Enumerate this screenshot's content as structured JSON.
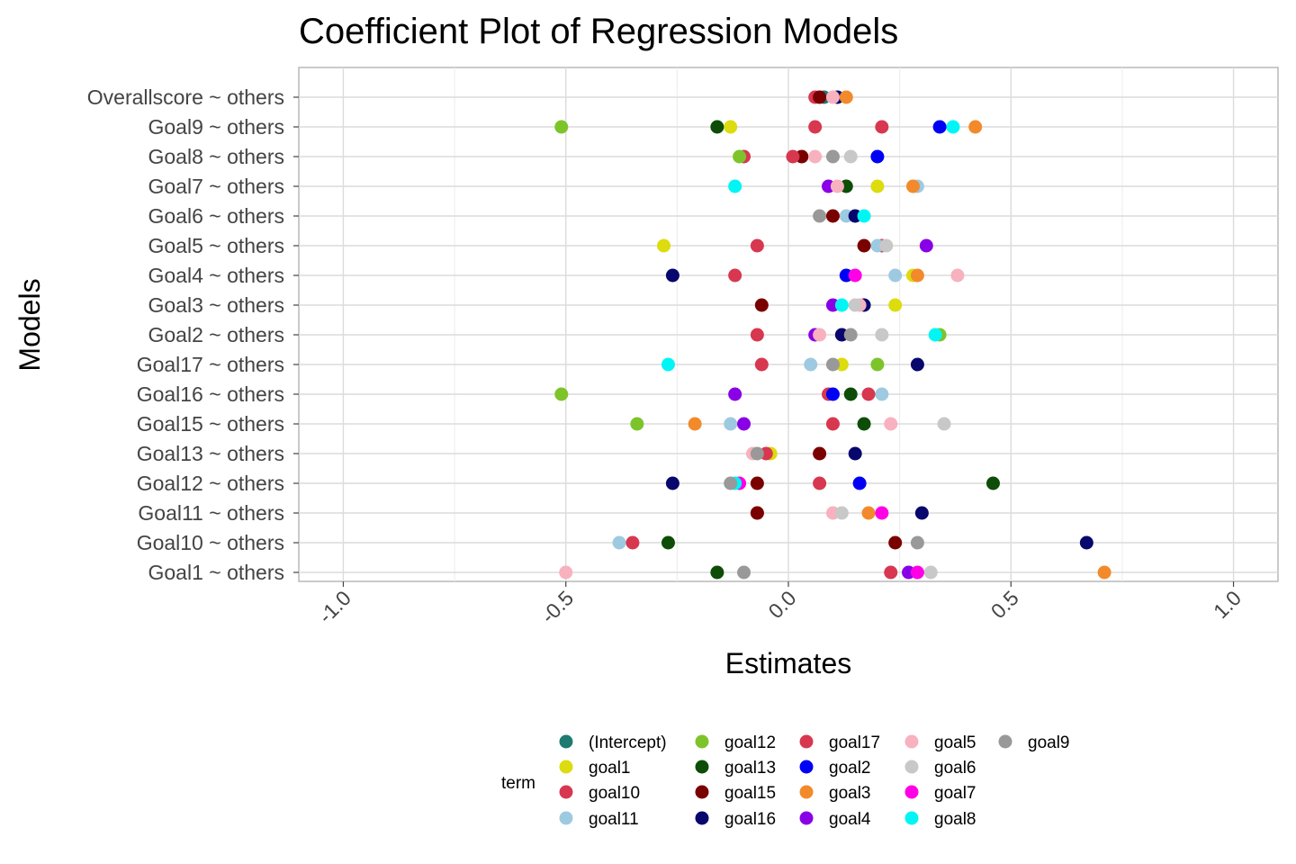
{
  "chart_data": {
    "type": "scatter",
    "title": "Coefficient Plot of Regression Models",
    "xlabel": "Estimates",
    "ylabel": "Models",
    "xlim": [
      -1.1,
      1.1
    ],
    "x_ticks": [
      -1.0,
      -0.5,
      0.0,
      0.5,
      1.0
    ],
    "x_tick_labels": [
      "-1.0",
      "-0.5",
      "0.0",
      "0.5",
      "1.0"
    ],
    "grid": true,
    "legend_title": "term",
    "legend_position": "bottom",
    "categories": [
      "Overallscore ~ others",
      "Goal9 ~ others",
      "Goal8 ~ others",
      "Goal7 ~ others",
      "Goal6 ~ others",
      "Goal5 ~ others",
      "Goal4 ~ others",
      "Goal3 ~ others",
      "Goal2 ~ others",
      "Goal17 ~ others",
      "Goal16 ~ others",
      "Goal15 ~ others",
      "Goal13 ~ others",
      "Goal12 ~ others",
      "Goal11 ~ others",
      "Goal10 ~ others",
      "Goal1 ~ others"
    ],
    "series": [
      {
        "name": "(Intercept)",
        "color": "#1f7a72",
        "points": [
          [
            "Overallscore ~ others",
            0.08
          ]
        ]
      },
      {
        "name": "goal1",
        "color": "#dcdc0e",
        "points": [
          [
            "Goal9 ~ others",
            -0.13
          ],
          [
            "Goal7 ~ others",
            0.2
          ],
          [
            "Goal5 ~ others",
            -0.28
          ],
          [
            "Goal4 ~ others",
            0.28
          ],
          [
            "Goal3 ~ others",
            0.24
          ],
          [
            "Goal17 ~ others",
            0.12
          ],
          [
            "Goal13 ~ others",
            -0.04
          ]
        ]
      },
      {
        "name": "goal10",
        "color": "#d7384f",
        "points": [
          [
            "Overallscore ~ others",
            0.06
          ],
          [
            "Goal9 ~ others",
            0.06
          ],
          [
            "Goal8 ~ others",
            -0.1
          ],
          [
            "Goal5 ~ others",
            0.21
          ],
          [
            "Goal4 ~ others",
            -0.12
          ],
          [
            "Goal2 ~ others",
            -0.07
          ],
          [
            "Goal17 ~ others",
            -0.06
          ],
          [
            "Goal16 ~ others",
            0.09
          ],
          [
            "Goal15 ~ others",
            0.1
          ],
          [
            "Goal13 ~ others",
            -0.05
          ],
          [
            "Goal12 ~ others",
            0.07
          ],
          [
            "Goal11 ~ others",
            -0.07
          ],
          [
            "Goal1 ~ others",
            0.23
          ]
        ]
      },
      {
        "name": "goal11",
        "color": "#9ecae1",
        "points": [
          [
            "Goal7 ~ others",
            0.29
          ],
          [
            "Goal6 ~ others",
            0.13
          ],
          [
            "Goal5 ~ others",
            0.2
          ],
          [
            "Goal4 ~ others",
            0.24
          ],
          [
            "Goal17 ~ others",
            0.05
          ],
          [
            "Goal16 ~ others",
            0.21
          ],
          [
            "Goal15 ~ others",
            -0.13
          ],
          [
            "Goal10 ~ others",
            -0.38
          ]
        ]
      },
      {
        "name": "goal12",
        "color": "#7dc42b",
        "points": [
          [
            "Goal9 ~ others",
            -0.51
          ],
          [
            "Goal8 ~ others",
            -0.11
          ],
          [
            "Goal2 ~ others",
            0.34
          ],
          [
            "Goal17 ~ others",
            0.2
          ],
          [
            "Goal16 ~ others",
            -0.51
          ],
          [
            "Goal15 ~ others",
            -0.34
          ]
        ]
      },
      {
        "name": "goal13",
        "color": "#0d4d08",
        "points": [
          [
            "Goal9 ~ others",
            -0.16
          ],
          [
            "Goal7 ~ others",
            0.13
          ],
          [
            "Goal16 ~ others",
            0.14
          ],
          [
            "Goal15 ~ others",
            0.17
          ],
          [
            "Goal12 ~ others",
            0.46
          ],
          [
            "Goal10 ~ others",
            -0.27
          ],
          [
            "Goal1 ~ others",
            -0.16
          ]
        ]
      },
      {
        "name": "goal15",
        "color": "#7a0000",
        "points": [
          [
            "Overallscore ~ others",
            0.07
          ],
          [
            "Goal8 ~ others",
            0.03
          ],
          [
            "Goal6 ~ others",
            0.1
          ],
          [
            "Goal5 ~ others",
            0.17
          ],
          [
            "Goal3 ~ others",
            -0.06
          ],
          [
            "Goal13 ~ others",
            0.07
          ],
          [
            "Goal12 ~ others",
            -0.07
          ],
          [
            "Goal11 ~ others",
            -0.07
          ],
          [
            "Goal10 ~ others",
            0.24
          ]
        ]
      },
      {
        "name": "goal16",
        "color": "#07076e",
        "points": [
          [
            "Overallscore ~ others",
            0.11
          ],
          [
            "Goal6 ~ others",
            0.15
          ],
          [
            "Goal4 ~ others",
            -0.26
          ],
          [
            "Goal3 ~ others",
            0.17
          ],
          [
            "Goal2 ~ others",
            0.12
          ],
          [
            "Goal17 ~ others",
            0.29
          ],
          [
            "Goal13 ~ others",
            0.15
          ],
          [
            "Goal12 ~ others",
            -0.26
          ],
          [
            "Goal11 ~ others",
            0.3
          ],
          [
            "Goal10 ~ others",
            0.67
          ]
        ]
      },
      {
        "name": "goal17",
        "color": "#d7384f",
        "points": [
          [
            "Goal9 ~ others",
            0.21
          ],
          [
            "Goal8 ~ others",
            0.01
          ],
          [
            "Goal5 ~ others",
            -0.07
          ],
          [
            "Goal16 ~ others",
            0.18
          ],
          [
            "Goal10 ~ others",
            -0.35
          ]
        ]
      },
      {
        "name": "goal2",
        "color": "#0000f5",
        "points": [
          [
            "Goal9 ~ others",
            0.34
          ],
          [
            "Goal8 ~ others",
            0.2
          ],
          [
            "Goal4 ~ others",
            0.13
          ],
          [
            "Goal16 ~ others",
            0.1
          ],
          [
            "Goal12 ~ others",
            0.16
          ]
        ]
      },
      {
        "name": "goal3",
        "color": "#f28a2b",
        "points": [
          [
            "Overallscore ~ others",
            0.13
          ],
          [
            "Goal9 ~ others",
            0.42
          ],
          [
            "Goal7 ~ others",
            0.28
          ],
          [
            "Goal4 ~ others",
            0.29
          ],
          [
            "Goal15 ~ others",
            -0.21
          ],
          [
            "Goal11 ~ others",
            0.18
          ],
          [
            "Goal1 ~ others",
            0.71
          ]
        ]
      },
      {
        "name": "goal4",
        "color": "#8a00e6",
        "points": [
          [
            "Goal7 ~ others",
            0.09
          ],
          [
            "Goal5 ~ others",
            0.31
          ],
          [
            "Goal3 ~ others",
            0.1
          ],
          [
            "Goal2 ~ others",
            0.06
          ],
          [
            "Goal16 ~ others",
            -0.12
          ],
          [
            "Goal15 ~ others",
            -0.1
          ],
          [
            "Goal1 ~ others",
            0.27
          ]
        ]
      },
      {
        "name": "goal5",
        "color": "#f8b1be",
        "points": [
          [
            "Overallscore ~ others",
            0.1
          ],
          [
            "Goal8 ~ others",
            0.06
          ],
          [
            "Goal7 ~ others",
            0.11
          ],
          [
            "Goal4 ~ others",
            0.38
          ],
          [
            "Goal3 ~ others",
            0.16
          ],
          [
            "Goal2 ~ others",
            0.07
          ],
          [
            "Goal15 ~ others",
            0.23
          ],
          [
            "Goal13 ~ others",
            -0.08
          ],
          [
            "Goal11 ~ others",
            0.1
          ],
          [
            "Goal1 ~ others",
            -0.5
          ]
        ]
      },
      {
        "name": "goal6",
        "color": "#c8c8c8",
        "points": [
          [
            "Goal8 ~ others",
            0.14
          ],
          [
            "Goal5 ~ others",
            0.22
          ],
          [
            "Goal3 ~ others",
            0.15
          ],
          [
            "Goal2 ~ others",
            0.21
          ],
          [
            "Goal15 ~ others",
            0.35
          ],
          [
            "Goal11 ~ others",
            0.12
          ],
          [
            "Goal1 ~ others",
            0.32
          ]
        ]
      },
      {
        "name": "goal7",
        "color": "#ff00e6",
        "points": [
          [
            "Goal4 ~ others",
            0.15
          ],
          [
            "Goal12 ~ others",
            -0.11
          ],
          [
            "Goal11 ~ others",
            0.21
          ],
          [
            "Goal1 ~ others",
            0.29
          ]
        ]
      },
      {
        "name": "goal8",
        "color": "#00f5f5",
        "points": [
          [
            "Goal9 ~ others",
            0.37
          ],
          [
            "Goal7 ~ others",
            -0.12
          ],
          [
            "Goal6 ~ others",
            0.17
          ],
          [
            "Goal3 ~ others",
            0.12
          ],
          [
            "Goal2 ~ others",
            0.33
          ],
          [
            "Goal17 ~ others",
            -0.27
          ],
          [
            "Goal12 ~ others",
            -0.12
          ]
        ]
      },
      {
        "name": "goal9",
        "color": "#999999",
        "points": [
          [
            "Goal8 ~ others",
            0.1
          ],
          [
            "Goal6 ~ others",
            0.07
          ],
          [
            "Goal2 ~ others",
            0.14
          ],
          [
            "Goal17 ~ others",
            0.1
          ],
          [
            "Goal13 ~ others",
            -0.07
          ],
          [
            "Goal12 ~ others",
            -0.13
          ],
          [
            "Goal10 ~ others",
            0.29
          ],
          [
            "Goal1 ~ others",
            -0.1
          ]
        ]
      }
    ]
  }
}
